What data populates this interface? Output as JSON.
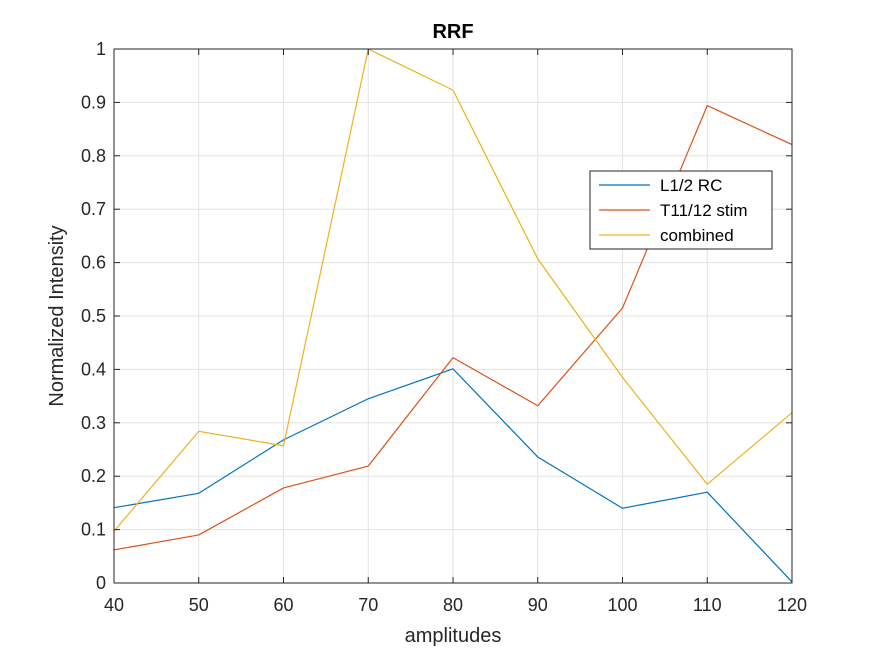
{
  "chart_data": {
    "type": "line",
    "title": "RRF",
    "xlabel": "amplitudes",
    "ylabel": "Normalized Intensity",
    "xlim": [
      40,
      120
    ],
    "ylim": [
      0,
      1
    ],
    "xticks": [
      40,
      50,
      60,
      70,
      80,
      90,
      100,
      110,
      120
    ],
    "yticks": [
      0,
      0.1,
      0.2,
      0.3,
      0.4,
      0.5,
      0.6,
      0.7,
      0.8,
      0.9,
      1
    ],
    "ytick_labels": [
      "0",
      "0.1",
      "0.2",
      "0.3",
      "0.4",
      "0.5",
      "0.6",
      "0.7",
      "0.8",
      "0.9",
      "1"
    ],
    "grid": true,
    "legend_position": "upper-right",
    "x": [
      40,
      50,
      60,
      70,
      80,
      90,
      100,
      110,
      120
    ],
    "series": [
      {
        "name": "L1/2 RC",
        "color": "#0072BD",
        "values": [
          0.141,
          0.168,
          0.268,
          0.345,
          0.401,
          0.236,
          0.14,
          0.17,
          0.002
        ]
      },
      {
        "name": "T11/12 stim",
        "color": "#D95319",
        "values": [
          0.062,
          0.09,
          0.178,
          0.219,
          0.422,
          0.332,
          0.515,
          0.894,
          0.821
        ]
      },
      {
        "name": "combined",
        "color": "#EDB120",
        "values": [
          0.097,
          0.284,
          0.257,
          1.0,
          0.923,
          0.607,
          0.385,
          0.185,
          0.319
        ]
      }
    ]
  }
}
